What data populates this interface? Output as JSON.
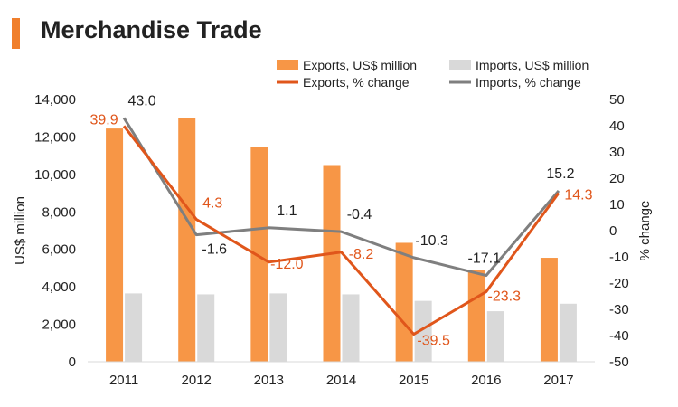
{
  "title": "Merchandise Trade",
  "colors": {
    "exports_bar": "#F79646",
    "imports_bar": "#D9D9D9",
    "exports_line": "#E0561B",
    "imports_line": "#7F7F7F",
    "accent": "#F07F2C"
  },
  "chart_data": {
    "type": "bar",
    "categories": [
      "2011",
      "2012",
      "2013",
      "2014",
      "2015",
      "2016",
      "2017"
    ],
    "series": [
      {
        "name": "Exports, US$ million",
        "type": "bar",
        "axis": "left",
        "values": [
          12450,
          13000,
          11450,
          10500,
          6350,
          4900,
          5550
        ]
      },
      {
        "name": "Imports, US$ million",
        "type": "bar",
        "axis": "left",
        "values": [
          3650,
          3600,
          3650,
          3600,
          3250,
          2700,
          3100
        ]
      },
      {
        "name": "Exports, % change",
        "type": "line",
        "axis": "right",
        "values": [
          39.9,
          4.3,
          -12.0,
          -8.2,
          -39.5,
          -23.3,
          14.3
        ],
        "labels": [
          "39.9",
          "4.3",
          "-12.0",
          "-8.2",
          "-39.5",
          "-23.3",
          "14.3"
        ]
      },
      {
        "name": "Imports, % change",
        "type": "line",
        "axis": "right",
        "values": [
          43.0,
          -1.6,
          1.1,
          -0.4,
          -10.3,
          -17.1,
          15.2
        ],
        "labels": [
          "43.0",
          "-1.6",
          "1.1",
          "-0.4",
          "-10.3",
          "-17.1",
          "15.2"
        ]
      }
    ],
    "ylabel": "US$ million",
    "ylim": [
      0,
      14000
    ],
    "yticks": [
      "0",
      "2,000",
      "4,000",
      "6,000",
      "8,000",
      "10,000",
      "12,000",
      "14,000"
    ],
    "y2label": "% change",
    "y2lim": [
      -50,
      50
    ],
    "y2ticks": [
      "-50",
      "-40",
      "-30",
      "-20",
      "-10",
      "0",
      "10",
      "20",
      "30",
      "40",
      "50"
    ],
    "legend_position": "top-right",
    "grid": false
  }
}
